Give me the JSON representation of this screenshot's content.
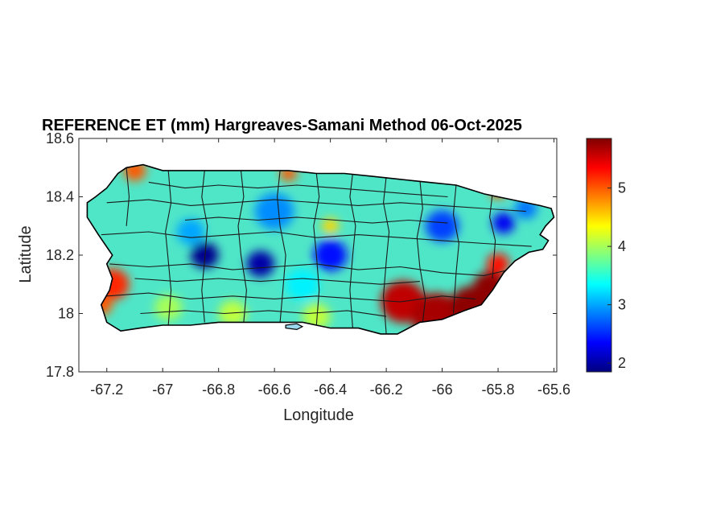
{
  "chart_data": {
    "type": "heatmap",
    "title": "REFERENCE ET (mm) Hargreaves-Samani Method  06-Oct-2025",
    "xlabel": "Longitude",
    "ylabel": "Latitude",
    "xlim": [
      -67.3,
      -65.59
    ],
    "ylim": [
      17.8,
      18.6
    ],
    "xticks": [
      -67.2,
      -67,
      -66.8,
      -66.6,
      -66.4,
      -66.2,
      -66,
      -65.8,
      -65.6
    ],
    "yticks": [
      17.8,
      18,
      18.2,
      18.4,
      18.6
    ],
    "xtick_labels": [
      "-67.2",
      "-67",
      "-66.8",
      "-66.6",
      "-66.4",
      "-66.2",
      "-66",
      "-65.8",
      "-65.6"
    ],
    "ytick_labels": [
      "17.8",
      "18",
      "18.2",
      "18.4",
      "18.6"
    ],
    "colorbar": {
      "colormap": "jet",
      "range": [
        1.85,
        5.85
      ],
      "ticks": [
        2,
        3,
        4,
        5
      ],
      "tick_labels": [
        "2",
        "3",
        "4",
        "5"
      ]
    },
    "outline": [
      [
        -67.27,
        18.38
      ],
      [
        -67.24,
        18.4
      ],
      [
        -67.2,
        18.43
      ],
      [
        -67.16,
        18.48
      ],
      [
        -67.13,
        18.5
      ],
      [
        -67.07,
        18.51
      ],
      [
        -67.0,
        18.49
      ],
      [
        -66.92,
        18.49
      ],
      [
        -66.85,
        18.49
      ],
      [
        -66.75,
        18.49
      ],
      [
        -66.65,
        18.49
      ],
      [
        -66.55,
        18.49
      ],
      [
        -66.45,
        18.48
      ],
      [
        -66.35,
        18.48
      ],
      [
        -66.25,
        18.47
      ],
      [
        -66.15,
        18.46
      ],
      [
        -66.05,
        18.45
      ],
      [
        -65.95,
        18.44
      ],
      [
        -65.85,
        18.41
      ],
      [
        -65.75,
        18.39
      ],
      [
        -65.65,
        18.37
      ],
      [
        -65.61,
        18.36
      ],
      [
        -65.6,
        18.33
      ],
      [
        -65.63,
        18.3
      ],
      [
        -65.65,
        18.27
      ],
      [
        -65.62,
        18.25
      ],
      [
        -65.64,
        18.22
      ],
      [
        -65.69,
        18.21
      ],
      [
        -65.74,
        18.18
      ],
      [
        -65.78,
        18.14
      ],
      [
        -65.82,
        18.08
      ],
      [
        -65.86,
        18.03
      ],
      [
        -65.92,
        18.01
      ],
      [
        -66.0,
        17.98
      ],
      [
        -66.08,
        17.97
      ],
      [
        -66.16,
        17.93
      ],
      [
        -66.22,
        17.93
      ],
      [
        -66.3,
        17.95
      ],
      [
        -66.4,
        17.95
      ],
      [
        -66.5,
        17.97
      ],
      [
        -66.6,
        17.97
      ],
      [
        -66.7,
        17.97
      ],
      [
        -66.8,
        17.97
      ],
      [
        -66.9,
        17.96
      ],
      [
        -67.0,
        17.96
      ],
      [
        -67.08,
        17.95
      ],
      [
        -67.15,
        17.94
      ],
      [
        -67.2,
        17.97
      ],
      [
        -67.22,
        18.03
      ],
      [
        -67.19,
        18.08
      ],
      [
        -67.18,
        18.12
      ],
      [
        -67.2,
        18.17
      ],
      [
        -67.18,
        18.2
      ],
      [
        -67.23,
        18.27
      ],
      [
        -67.27,
        18.33
      ],
      [
        -67.27,
        18.38
      ]
    ],
    "islet_outline": [
      [
        -66.56,
        17.96
      ],
      [
        -66.52,
        17.965
      ],
      [
        -66.5,
        17.955
      ],
      [
        -66.52,
        17.945
      ],
      [
        -66.56,
        17.95
      ],
      [
        -66.56,
        17.96
      ]
    ],
    "hotspots": [
      {
        "lon": -66.14,
        "lat": 18.04,
        "value": 5.6,
        "r": 0.08
      },
      {
        "lon": -66.02,
        "lat": 17.99,
        "value": 5.7,
        "r": 0.09
      },
      {
        "lon": -65.9,
        "lat": 18.03,
        "value": 5.8,
        "r": 0.07
      },
      {
        "lon": -65.83,
        "lat": 18.09,
        "value": 5.8,
        "r": 0.06
      },
      {
        "lon": -65.8,
        "lat": 18.17,
        "value": 5.3,
        "r": 0.04
      },
      {
        "lon": -67.18,
        "lat": 18.1,
        "value": 5.2,
        "r": 0.06
      },
      {
        "lon": -67.22,
        "lat": 18.03,
        "value": 5.0,
        "r": 0.04
      },
      {
        "lon": -67.1,
        "lat": 18.49,
        "value": 5.0,
        "r": 0.04
      },
      {
        "lon": -66.55,
        "lat": 18.48,
        "value": 5.0,
        "r": 0.03
      },
      {
        "lon": -65.8,
        "lat": 18.42,
        "value": 5.0,
        "r": 0.03
      },
      {
        "lon": -66.85,
        "lat": 18.2,
        "value": 1.9,
        "r": 0.05
      },
      {
        "lon": -66.65,
        "lat": 18.17,
        "value": 2.0,
        "r": 0.05
      },
      {
        "lon": -66.4,
        "lat": 18.2,
        "value": 2.4,
        "r": 0.06
      },
      {
        "lon": -66.0,
        "lat": 18.3,
        "value": 2.6,
        "r": 0.06
      },
      {
        "lon": -65.78,
        "lat": 18.31,
        "value": 2.3,
        "r": 0.04
      },
      {
        "lon": -65.7,
        "lat": 18.36,
        "value": 2.8,
        "r": 0.04
      },
      {
        "lon": -66.6,
        "lat": 18.35,
        "value": 2.9,
        "r": 0.07
      },
      {
        "lon": -66.9,
        "lat": 18.28,
        "value": 3.0,
        "r": 0.05
      },
      {
        "lon": -66.5,
        "lat": 18.1,
        "value": 3.3,
        "r": 0.06
      },
      {
        "lon": -66.4,
        "lat": 18.3,
        "value": 4.5,
        "r": 0.03
      },
      {
        "lon": -66.98,
        "lat": 18.02,
        "value": 4.0,
        "r": 0.05
      },
      {
        "lon": -66.75,
        "lat": 18.0,
        "value": 4.1,
        "r": 0.05
      },
      {
        "lon": -66.45,
        "lat": 17.99,
        "value": 4.1,
        "r": 0.05
      }
    ],
    "boundaries": [
      [
        [
          -67.13,
          18.5
        ],
        [
          -67.12,
          18.4
        ],
        [
          -67.13,
          18.3
        ]
      ],
      [
        [
          -66.98,
          18.49
        ],
        [
          -66.97,
          18.38
        ],
        [
          -66.99,
          18.28
        ],
        [
          -66.98,
          18.18
        ],
        [
          -66.97,
          18.08
        ],
        [
          -66.98,
          17.96
        ]
      ],
      [
        [
          -66.85,
          18.49
        ],
        [
          -66.86,
          18.4
        ],
        [
          -66.84,
          18.3
        ],
        [
          -66.85,
          18.18
        ],
        [
          -66.86,
          18.08
        ],
        [
          -66.85,
          17.97
        ]
      ],
      [
        [
          -66.72,
          18.49
        ],
        [
          -66.71,
          18.4
        ],
        [
          -66.73,
          18.3
        ],
        [
          -66.72,
          18.2
        ],
        [
          -66.7,
          18.08
        ],
        [
          -66.71,
          17.97
        ]
      ],
      [
        [
          -66.58,
          18.49
        ],
        [
          -66.59,
          18.4
        ],
        [
          -66.58,
          18.3
        ],
        [
          -66.56,
          18.2
        ],
        [
          -66.57,
          18.08
        ],
        [
          -66.58,
          17.97
        ]
      ],
      [
        [
          -66.45,
          18.48
        ],
        [
          -66.44,
          18.4
        ],
        [
          -66.46,
          18.3
        ],
        [
          -66.45,
          18.2
        ],
        [
          -66.44,
          18.08
        ],
        [
          -66.45,
          17.96
        ]
      ],
      [
        [
          -66.32,
          18.48
        ],
        [
          -66.33,
          18.4
        ],
        [
          -66.31,
          18.3
        ],
        [
          -66.32,
          18.2
        ],
        [
          -66.33,
          18.08
        ],
        [
          -66.32,
          17.95
        ]
      ],
      [
        [
          -66.2,
          18.47
        ],
        [
          -66.21,
          18.38
        ],
        [
          -66.19,
          18.28
        ],
        [
          -66.2,
          18.18
        ],
        [
          -66.21,
          18.06
        ],
        [
          -66.2,
          17.93
        ]
      ],
      [
        [
          -66.08,
          18.46
        ],
        [
          -66.07,
          18.36
        ],
        [
          -66.09,
          18.26
        ],
        [
          -66.08,
          18.16
        ],
        [
          -66.06,
          18.05
        ],
        [
          -66.07,
          17.97
        ]
      ],
      [
        [
          -65.95,
          18.44
        ],
        [
          -65.96,
          18.34
        ],
        [
          -65.94,
          18.24
        ],
        [
          -65.95,
          18.14
        ],
        [
          -65.96,
          18.0
        ]
      ],
      [
        [
          -65.82,
          18.41
        ],
        [
          -65.83,
          18.33
        ],
        [
          -65.81,
          18.25
        ],
        [
          -65.82,
          18.12
        ]
      ],
      [
        [
          -67.2,
          18.38
        ],
        [
          -67.05,
          18.39
        ],
        [
          -66.9,
          18.37
        ],
        [
          -66.75,
          18.38
        ],
        [
          -66.6,
          18.39
        ],
        [
          -66.45,
          18.38
        ],
        [
          -66.3,
          18.37
        ],
        [
          -66.15,
          18.38
        ],
        [
          -66.0,
          18.37
        ],
        [
          -65.85,
          18.36
        ],
        [
          -65.7,
          18.35
        ]
      ],
      [
        [
          -67.22,
          18.27
        ],
        [
          -67.05,
          18.28
        ],
        [
          -66.9,
          18.26
        ],
        [
          -66.75,
          18.27
        ],
        [
          -66.6,
          18.28
        ],
        [
          -66.45,
          18.26
        ],
        [
          -66.3,
          18.27
        ],
        [
          -66.15,
          18.26
        ],
        [
          -66.0,
          18.25
        ],
        [
          -65.85,
          18.24
        ],
        [
          -65.68,
          18.23
        ]
      ],
      [
        [
          -67.19,
          18.17
        ],
        [
          -67.05,
          18.16
        ],
        [
          -66.9,
          18.17
        ],
        [
          -66.75,
          18.15
        ],
        [
          -66.6,
          18.16
        ],
        [
          -66.45,
          18.17
        ],
        [
          -66.3,
          18.15
        ],
        [
          -66.15,
          18.16
        ],
        [
          -66.0,
          18.14
        ],
        [
          -65.85,
          18.13
        ],
        [
          -65.76,
          18.15
        ]
      ],
      [
        [
          -67.2,
          18.06
        ],
        [
          -67.05,
          18.07
        ],
        [
          -66.9,
          18.05
        ],
        [
          -66.75,
          18.06
        ],
        [
          -66.6,
          18.05
        ],
        [
          -66.45,
          18.06
        ],
        [
          -66.3,
          18.05
        ],
        [
          -66.15,
          18.04
        ],
        [
          -66.0,
          18.06
        ],
        [
          -65.88,
          18.05
        ]
      ],
      [
        [
          -67.05,
          18.45
        ],
        [
          -66.92,
          18.43
        ],
        [
          -66.8,
          18.44
        ],
        [
          -66.66,
          18.43
        ],
        [
          -66.52,
          18.44
        ],
        [
          -66.38,
          18.43
        ],
        [
          -66.25,
          18.42
        ],
        [
          -66.12,
          18.41
        ],
        [
          -65.98,
          18.4
        ]
      ],
      [
        [
          -66.92,
          18.32
        ],
        [
          -66.8,
          18.33
        ],
        [
          -66.66,
          18.32
        ],
        [
          -66.52,
          18.33
        ],
        [
          -66.38,
          18.32
        ],
        [
          -66.25,
          18.31
        ],
        [
          -66.12,
          18.32
        ],
        [
          -65.98,
          18.31
        ]
      ],
      [
        [
          -67.1,
          18.12
        ],
        [
          -66.95,
          18.11
        ],
        [
          -66.8,
          18.12
        ],
        [
          -66.65,
          18.11
        ],
        [
          -66.5,
          18.12
        ],
        [
          -66.36,
          18.11
        ],
        [
          -66.22,
          18.1
        ],
        [
          -66.08,
          18.11
        ]
      ],
      [
        [
          -67.08,
          18.0
        ],
        [
          -66.92,
          18.01
        ],
        [
          -66.78,
          18.0
        ],
        [
          -66.62,
          18.01
        ],
        [
          -66.48,
          18.0
        ],
        [
          -66.34,
          18.01
        ],
        [
          -66.2,
          17.99
        ]
      ]
    ]
  }
}
